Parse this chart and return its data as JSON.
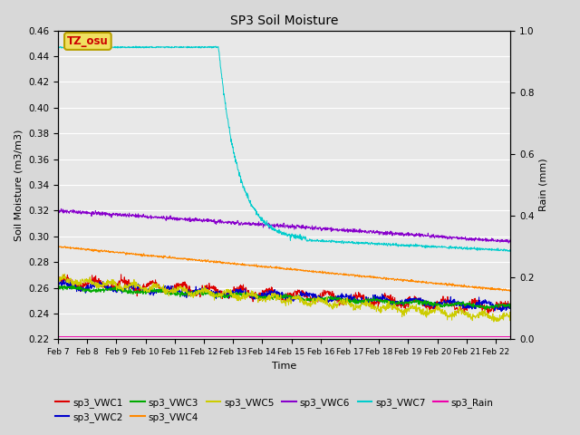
{
  "title": "SP3 Soil Moisture",
  "xlabel": "Time",
  "ylabel_left": "Soil Moisture (m3/m3)",
  "ylabel_right": "Rain (mm)",
  "ylim_left": [
    0.22,
    0.46
  ],
  "ylim_right": [
    0.0,
    1.0
  ],
  "xlim": [
    0,
    15.5
  ],
  "x_tick_labels": [
    "Feb 7",
    "Feb 8",
    "Feb 9",
    "Feb 10",
    "Feb 11",
    "Feb 12",
    "Feb 13",
    "Feb 14",
    "Feb 15",
    "Feb 16",
    "Feb 17",
    "Feb 18",
    "Feb 19",
    "Feb 20",
    "Feb 21",
    "Feb 22"
  ],
  "fig_bg": "#d8d8d8",
  "plot_bg": "#e8e8e8",
  "annotation_text": "TZ_osu",
  "annotation_bg": "#f0e060",
  "annotation_border": "#b8a000",
  "series_colors": {
    "sp3_VWC1": "#dd0000",
    "sp3_VWC2": "#0000cc",
    "sp3_VWC3": "#00aa00",
    "sp3_VWC4": "#ff8800",
    "sp3_VWC5": "#cccc00",
    "sp3_VWC6": "#8800cc",
    "sp3_VWC7": "#00cccc",
    "sp3_Rain": "#ee00aa"
  },
  "legend_order": [
    "sp3_VWC1",
    "sp3_VWC2",
    "sp3_VWC3",
    "sp3_VWC4",
    "sp3_VWC5",
    "sp3_VWC6",
    "sp3_VWC7",
    "sp3_Rain"
  ]
}
